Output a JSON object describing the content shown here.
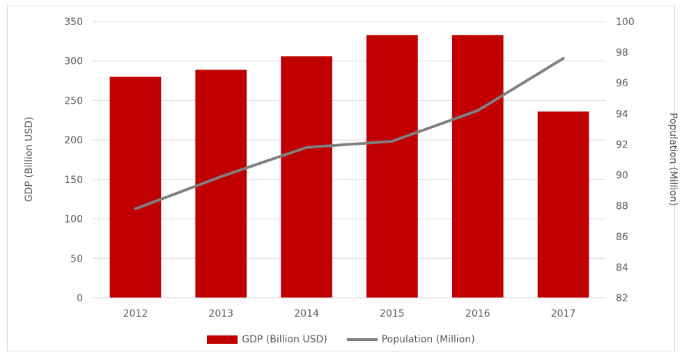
{
  "chart_data": {
    "type": "bar+line",
    "categories": [
      "2012",
      "2013",
      "2014",
      "2015",
      "2016",
      "2017"
    ],
    "series": [
      {
        "name": "GDP (Billion USD)",
        "type": "bar",
        "axis": "left",
        "values": [
          280,
          289,
          306,
          333,
          333,
          236
        ],
        "color": "#c00000"
      },
      {
        "name": "Population (Million)",
        "type": "line",
        "axis": "right",
        "values": [
          87.8,
          89.9,
          91.8,
          92.2,
          94.2,
          97.6
        ],
        "color": "#808080"
      }
    ],
    "ylabel": "GDP (Billion USD)",
    "y2label": "Population (Million)",
    "ylim": [
      0,
      350
    ],
    "y2lim": [
      82,
      100
    ],
    "yticks": [
      "0",
      "50",
      "100",
      "150",
      "200",
      "250",
      "300",
      "350"
    ],
    "y2ticks": [
      "82",
      "84",
      "86",
      "88",
      "90",
      "92",
      "94",
      "96",
      "98",
      "100"
    ],
    "grid": true,
    "legend_position": "bottom"
  }
}
